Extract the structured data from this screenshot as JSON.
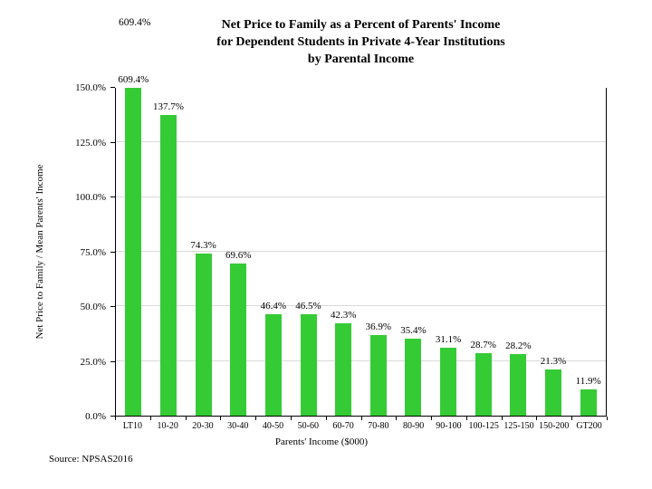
{
  "title": {
    "lines": [
      "Net Price to Family as a Percent of Parents' Income",
      "for Dependent Students in Private 4-Year Institutions",
      "by Parental Income"
    ]
  },
  "annotations": {
    "top_left_value": "609.4%"
  },
  "footer": {
    "source": "Source: NPSAS2016"
  },
  "chart_data": {
    "type": "bar",
    "title": "Net Price to Family as a Percent of Parents' Income for Dependent Students in Private 4-Year Institutions by Parental Income",
    "categories": [
      "LT10",
      "10-20",
      "20-30",
      "30-40",
      "40-50",
      "50-60",
      "60-70",
      "70-80",
      "80-90",
      "90-100",
      "100-125",
      "125-150",
      "150-200",
      "GT200"
    ],
    "values": [
      609.4,
      137.7,
      74.3,
      69.6,
      46.4,
      46.5,
      42.3,
      36.9,
      35.4,
      31.1,
      28.7,
      28.2,
      21.3,
      11.9
    ],
    "bar_labels": [
      "609.4%",
      "137.7%",
      "74.3%",
      "69.6%",
      "46.4%",
      "46.5%",
      "42.3%",
      "36.9%",
      "35.4%",
      "31.1%",
      "28.7%",
      "28.2%",
      "21.3%",
      "11.9%"
    ],
    "xlabel": "Parents' Income ($000)",
    "ylabel": "Net Price to Family / Mean Parents' Income",
    "ylim": [
      0,
      150
    ],
    "yticks": [
      0,
      25,
      50,
      75,
      100,
      125,
      150
    ],
    "ytick_labels": [
      "0.0%",
      "25.0%",
      "50.0%",
      "75.0%",
      "100.0%",
      "125.0%",
      "150.0%"
    ],
    "grid": true,
    "legend_position": "none",
    "bar_color": "#35CB35",
    "gridline_color": "#D9D9D9",
    "axis_color": "#000000"
  }
}
